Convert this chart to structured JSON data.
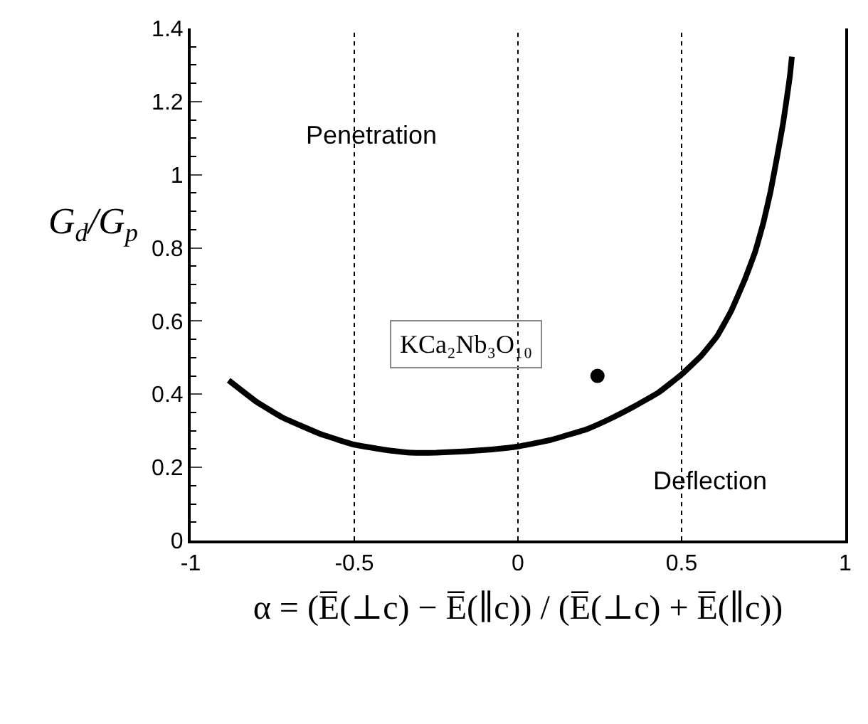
{
  "chart_data": {
    "type": "line",
    "xlabel": "α = (E̅(⊥c) − E̅(∥c)) / (E̅(⊥c) + E̅(∥c))",
    "ylabel": "G$_{d}$/G$_{p}$",
    "xlim": [
      -1,
      1
    ],
    "xticks": [
      -1,
      -0.5,
      0,
      0.5,
      1
    ],
    "ylim": [
      0,
      1.4
    ],
    "yticks": [
      0,
      0.2,
      0.4,
      0.6,
      0.8,
      1,
      1.2,
      1.4
    ],
    "grid": false,
    "series": [
      {
        "color": "#000000",
        "x": [
          -0.884,
          -0.8,
          -0.721,
          -0.6,
          -0.5,
          -0.4,
          -0.325,
          -0.25,
          -0.156,
          -0.08,
          0,
          0.1,
          0.212,
          0.28,
          0.354,
          0.43,
          0.5,
          0.56,
          0.608,
          0.65,
          0.693,
          0.725,
          0.75,
          0.772,
          0.792,
          0.81,
          0.823,
          0.831,
          0.837
        ],
        "values": [
          0.438,
          0.38,
          0.337,
          0.29,
          0.262,
          0.247,
          0.24,
          0.24,
          0.244,
          0.249,
          0.257,
          0.275,
          0.305,
          0.332,
          0.366,
          0.405,
          0.454,
          0.505,
          0.558,
          0.625,
          0.713,
          0.79,
          0.869,
          0.955,
          1.05,
          1.14,
          1.219,
          1.27,
          1.323
        ]
      },
      {
        "type": "scatter",
        "color": "#000000",
        "marker": "circle",
        "x": [
          0.243
        ],
        "values": [
          0.45
        ]
      }
    ],
    "ref_lines": [
      {
        "axis": "x",
        "value": -0.5,
        "line_style": "dotted",
        "color": "#000000"
      },
      {
        "axis": "x",
        "value": 0,
        "line_style": "dotted",
        "color": "#000000"
      },
      {
        "axis": "x",
        "value": 0.5,
        "line_style": "dotted",
        "color": "#000000"
      }
    ],
    "annotations": [
      "Penetration",
      "KCa₂Nb₃O₁₀",
      "Deflection"
    ]
  }
}
